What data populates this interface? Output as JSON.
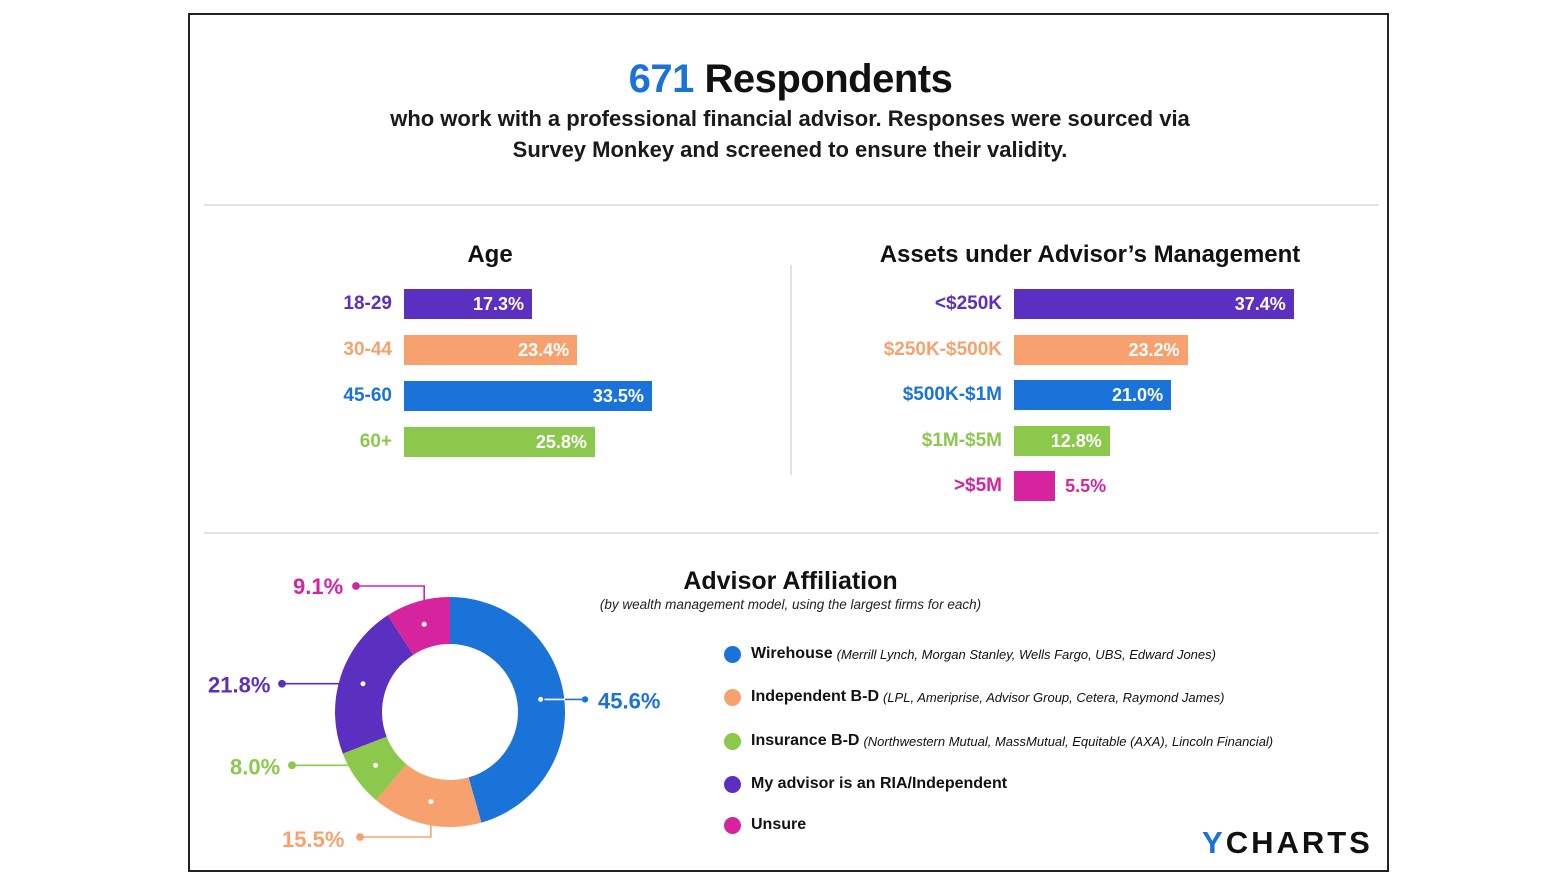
{
  "header": {
    "count": "671",
    "title_rest": "Respondents",
    "subtitle_line1": "who work with a professional financial advisor. Responses were sourced via",
    "subtitle_line2": "Survey Monkey and screened to ensure their validity."
  },
  "colors": {
    "purple": "#5b2fc0",
    "orange": "#f7a26e",
    "blue": "#1a73d9",
    "green": "#8cc84b",
    "magenta": "#d6249f"
  },
  "chart_data": [
    {
      "type": "bar",
      "title": "Age",
      "orientation": "horizontal",
      "categories": [
        "18-29",
        "30-44",
        "45-60",
        "60+"
      ],
      "values": [
        17.3,
        23.4,
        33.5,
        25.8
      ],
      "value_labels": [
        "17.3%",
        "23.4%",
        "33.5%",
        "25.8%"
      ],
      "colors": [
        "#5b2fc0",
        "#f7a26e",
        "#1a73d9",
        "#8cc84b"
      ],
      "unit": "%"
    },
    {
      "type": "bar",
      "title": "Assets under Advisor’s Management",
      "orientation": "horizontal",
      "categories": [
        "<$250K",
        "$250K-$500K",
        "$500K-$1M",
        "$1M-$5M",
        ">$5M"
      ],
      "values": [
        37.4,
        23.2,
        21.0,
        12.8,
        5.5
      ],
      "value_labels": [
        "37.4%",
        "23.2%",
        "21.0%",
        "12.8%",
        "5.5%"
      ],
      "colors": [
        "#5b2fc0",
        "#f7a26e",
        "#1a73d9",
        "#8cc84b",
        "#d6249f"
      ],
      "unit": "%"
    },
    {
      "type": "pie",
      "donut": true,
      "title": "Advisor Affiliation",
      "subtitle": "(by wealth management model, using the largest firms for each)",
      "categories": [
        "Wirehouse",
        "Independent B-D",
        "Insurance B-D",
        "My advisor is an RIA/Independent",
        "Unsure"
      ],
      "values": [
        45.6,
        15.5,
        8.0,
        21.8,
        9.1
      ],
      "value_labels": [
        "45.6%",
        "15.5%",
        "8.0%",
        "21.8%",
        "9.1%"
      ],
      "colors": [
        "#1a73d9",
        "#f7a26e",
        "#8cc84b",
        "#5b2fc0",
        "#d6249f"
      ],
      "legend_notes": [
        "(Merrill Lynch, Morgan Stanley, Wells Fargo, UBS, Edward Jones)",
        "(LPL, Ameriprise, Advisor Group, Cetera, Raymond James)",
        "(Northwestern Mutual, MassMutual, Equitable (AXA), Lincoln Financial)",
        "",
        ""
      ]
    }
  ],
  "logo": {
    "prefix": "Y",
    "rest": "CHARTS"
  }
}
